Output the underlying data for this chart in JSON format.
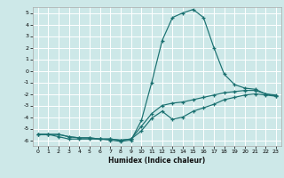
{
  "title": "",
  "xlabel": "Humidex (Indice chaleur)",
  "xlim": [
    -0.5,
    23.5
  ],
  "ylim": [
    -6.5,
    5.5
  ],
  "xticks": [
    0,
    1,
    2,
    3,
    4,
    5,
    6,
    7,
    8,
    9,
    10,
    11,
    12,
    13,
    14,
    15,
    16,
    17,
    18,
    19,
    20,
    21,
    22,
    23
  ],
  "yticks": [
    -6,
    -5,
    -4,
    -3,
    -2,
    -1,
    0,
    1,
    2,
    3,
    4,
    5
  ],
  "bg_color": "#cde8e8",
  "grid_color": "#b0d4d4",
  "line_color": "#1a7070",
  "line1_x": [
    0,
    1,
    2,
    3,
    4,
    5,
    6,
    7,
    8,
    9,
    10,
    11,
    12,
    13,
    14,
    15,
    16,
    17,
    18,
    19,
    20,
    21,
    22,
    23
  ],
  "line1_y": [
    -5.5,
    -5.5,
    -5.7,
    -5.9,
    -5.9,
    -5.9,
    -5.9,
    -6.0,
    -6.1,
    -6.0,
    -4.3,
    -1.0,
    2.6,
    4.6,
    5.0,
    5.3,
    4.6,
    2.0,
    -0.3,
    -1.2,
    -1.5,
    -1.6,
    -2.0,
    -2.1
  ],
  "line2_x": [
    0,
    1,
    2,
    3,
    4,
    5,
    6,
    7,
    8,
    9,
    10,
    11,
    12,
    13,
    14,
    15,
    16,
    17,
    18,
    19,
    20,
    21,
    22,
    23
  ],
  "line2_y": [
    -5.5,
    -5.5,
    -5.5,
    -5.7,
    -5.8,
    -5.8,
    -5.9,
    -5.9,
    -6.0,
    -5.9,
    -5.2,
    -4.1,
    -3.5,
    -4.2,
    -4.0,
    -3.5,
    -3.2,
    -2.9,
    -2.5,
    -2.3,
    -2.1,
    -2.0,
    -2.1,
    -2.2
  ],
  "line3_x": [
    0,
    1,
    2,
    3,
    4,
    5,
    6,
    7,
    8,
    9,
    10,
    11,
    12,
    13,
    14,
    15,
    16,
    17,
    18,
    19,
    20,
    21,
    22,
    23
  ],
  "line3_y": [
    -5.5,
    -5.5,
    -5.5,
    -5.7,
    -5.8,
    -5.8,
    -5.9,
    -5.9,
    -6.0,
    -5.9,
    -4.8,
    -3.7,
    -3.0,
    -2.8,
    -2.7,
    -2.5,
    -2.3,
    -2.1,
    -1.9,
    -1.8,
    -1.7,
    -1.7,
    -2.0,
    -2.2
  ]
}
